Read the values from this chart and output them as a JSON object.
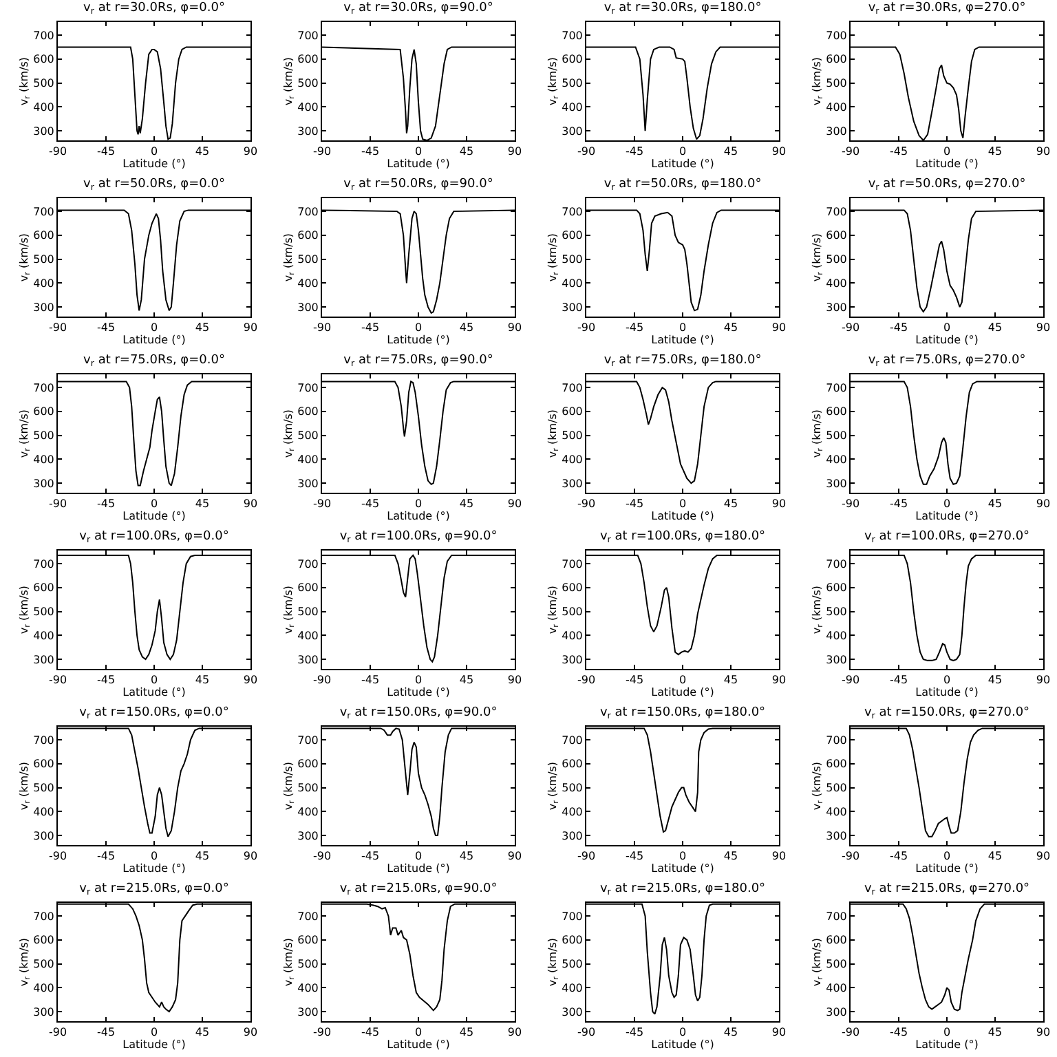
{
  "chart_data": [
    {
      "type": "line",
      "title": "v$_{r}$ at r=30.0Rs, φ=0.0°",
      "xlabel": "Latitude (°)",
      "ylabel": "v$_{r}$ (km/s)",
      "xlim": [
        -90,
        90
      ],
      "xticks": [
        -90,
        -45,
        0,
        45,
        90
      ],
      "ylim": [
        260,
        755
      ],
      "yticks": [
        300,
        400,
        500,
        600,
        700
      ],
      "series": [
        {
          "color": "#000000",
          "x": [
            -90,
            -22,
            -20,
            -18,
            -16,
            -15,
            -14,
            -13,
            -11,
            -8,
            -5,
            -2,
            0,
            3,
            6,
            9,
            11,
            13,
            15,
            17,
            20,
            23,
            26,
            30,
            90
          ],
          "values": [
            650,
            650,
            600,
            450,
            300,
            285,
            320,
            290,
            350,
            500,
            620,
            640,
            640,
            630,
            560,
            420,
            320,
            265,
            270,
            330,
            500,
            600,
            640,
            650,
            650
          ]
        }
      ]
    },
    {
      "type": "line",
      "title": "v$_{r}$ at r=30.0Rs, φ=90.0°",
      "xlabel": "Latitude (°)",
      "ylabel": "v$_{r}$ (km/s)",
      "xlim": [
        -90,
        90
      ],
      "xticks": [
        -90,
        -45,
        0,
        45,
        90
      ],
      "ylim": [
        260,
        755
      ],
      "yticks": [
        300,
        400,
        500,
        600,
        700
      ],
      "series": [
        {
          "color": "#000000",
          "x": [
            -90,
            -17,
            -14,
            -12,
            -11,
            -10,
            -8,
            -6,
            -4,
            -2,
            0,
            2,
            4,
            8,
            12,
            16,
            20,
            24,
            27,
            31,
            90
          ],
          "values": [
            650,
            640,
            520,
            380,
            290,
            320,
            480,
            600,
            640,
            580,
            420,
            300,
            265,
            260,
            270,
            320,
            450,
            580,
            640,
            650,
            650
          ]
        }
      ]
    },
    {
      "type": "line",
      "title": "v$_{r}$ at r=30.0Rs, φ=180.0°",
      "xlabel": "Latitude (°)",
      "ylabel": "v$_{r}$ (km/s)",
      "xlim": [
        -90,
        90
      ],
      "xticks": [
        -90,
        -45,
        0,
        45,
        90
      ],
      "ylim": [
        260,
        755
      ],
      "yticks": [
        300,
        400,
        500,
        600,
        700
      ],
      "series": [
        {
          "color": "#000000",
          "x": [
            -90,
            -44,
            -40,
            -37,
            -35,
            -33,
            -30,
            -27,
            -22,
            -12,
            -8,
            -6,
            0,
            2,
            4,
            7,
            10,
            13,
            16,
            19,
            23,
            27,
            31,
            35,
            90
          ],
          "values": [
            650,
            650,
            600,
            450,
            300,
            430,
            600,
            640,
            650,
            650,
            640,
            605,
            600,
            590,
            520,
            400,
            310,
            265,
            280,
            350,
            480,
            580,
            630,
            650,
            650
          ]
        }
      ]
    },
    {
      "type": "line",
      "title": "v$_{r}$ at r=30.0Rs, φ=270.0°",
      "xlabel": "Latitude (°)",
      "ylabel": "v$_{r}$ (km/s)",
      "xlim": [
        -90,
        90
      ],
      "xticks": [
        -90,
        -45,
        0,
        45,
        90
      ],
      "ylim": [
        260,
        755
      ],
      "yticks": [
        300,
        400,
        500,
        600,
        700
      ],
      "series": [
        {
          "color": "#000000",
          "x": [
            -90,
            -48,
            -44,
            -40,
            -36,
            -31,
            -26,
            -22,
            -18,
            -14,
            -10,
            -7,
            -5,
            -3,
            0,
            3,
            6,
            9,
            11,
            13,
            15,
            17,
            20,
            23,
            26,
            30,
            90
          ],
          "values": [
            650,
            650,
            620,
            540,
            440,
            340,
            280,
            260,
            285,
            380,
            480,
            560,
            575,
            530,
            500,
            495,
            480,
            450,
            390,
            300,
            270,
            360,
            480,
            590,
            640,
            650,
            650
          ]
        }
      ]
    },
    {
      "type": "line",
      "title": "v$_{r}$ at r=50.0Rs, φ=0.0°",
      "xlabel": "Latitude (°)",
      "ylabel": "v$_{r}$ (km/s)",
      "xlim": [
        -90,
        90
      ],
      "xticks": [
        -90,
        -45,
        0,
        45,
        90
      ],
      "ylim": [
        260,
        755
      ],
      "yticks": [
        300,
        400,
        500,
        600,
        700
      ],
      "series": [
        {
          "color": "#000000",
          "x": [
            -90,
            -28,
            -24,
            -21,
            -18,
            -16,
            -14,
            -12,
            -9,
            -5,
            -2,
            2,
            4,
            6,
            8,
            11,
            14,
            16,
            18,
            21,
            24,
            28,
            32,
            90
          ],
          "values": [
            705,
            705,
            690,
            620,
            480,
            350,
            285,
            330,
            500,
            600,
            650,
            690,
            670,
            580,
            450,
            330,
            285,
            300,
            400,
            560,
            660,
            700,
            705,
            705
          ]
        }
      ]
    },
    {
      "type": "line",
      "title": "v$_{r}$ at r=50.0Rs, φ=90.0°",
      "xlabel": "Latitude (°)",
      "ylabel": "v$_{r}$ (km/s)",
      "xlim": [
        -90,
        90
      ],
      "xticks": [
        -90,
        -45,
        0,
        45,
        90
      ],
      "ylim": [
        260,
        755
      ],
      "yticks": [
        300,
        400,
        500,
        600,
        700
      ],
      "series": [
        {
          "color": "#000000",
          "x": [
            -90,
            -20,
            -17,
            -14,
            -12,
            -11,
            -9,
            -6,
            -4,
            -2,
            0,
            2,
            4,
            6,
            9,
            12,
            14,
            17,
            20,
            23,
            26,
            29,
            33,
            90
          ],
          "values": [
            705,
            700,
            690,
            600,
            460,
            400,
            520,
            670,
            700,
            690,
            620,
            520,
            420,
            350,
            300,
            275,
            280,
            330,
            400,
            500,
            600,
            670,
            700,
            705
          ]
        }
      ]
    },
    {
      "type": "line",
      "title": "v$_{r}$ at r=50.0Rs, φ=180.0°",
      "xlabel": "Latitude (°)",
      "ylabel": "v$_{r}$ (km/s)",
      "xlim": [
        -90,
        90
      ],
      "xticks": [
        -90,
        -45,
        0,
        45,
        90
      ],
      "ylim": [
        260,
        755
      ],
      "yticks": [
        300,
        400,
        500,
        600,
        700
      ],
      "series": [
        {
          "color": "#000000",
          "x": [
            -90,
            -43,
            -40,
            -37,
            -35,
            -33,
            -31,
            -29,
            -26,
            -20,
            -14,
            -10,
            -7,
            -4,
            0,
            2,
            4,
            6,
            8,
            11,
            14,
            17,
            20,
            24,
            28,
            32,
            36,
            90
          ],
          "values": [
            705,
            705,
            690,
            620,
            520,
            450,
            540,
            650,
            680,
            690,
            695,
            680,
            600,
            570,
            560,
            540,
            480,
            400,
            320,
            285,
            290,
            350,
            450,
            560,
            650,
            695,
            705,
            705
          ]
        }
      ]
    },
    {
      "type": "line",
      "title": "v$_{r}$ at r=50.0Rs, φ=270.0°",
      "xlabel": "Latitude (°)",
      "ylabel": "v$_{r}$ (km/s)",
      "xlim": [
        -90,
        90
      ],
      "xticks": [
        -90,
        -45,
        0,
        45,
        90
      ],
      "ylim": [
        260,
        755
      ],
      "yticks": [
        300,
        400,
        500,
        600,
        700
      ],
      "series": [
        {
          "color": "#000000",
          "x": [
            -90,
            -40,
            -37,
            -34,
            -31,
            -28,
            -25,
            -22,
            -19,
            -15,
            -11,
            -7,
            -5,
            -3,
            0,
            3,
            6,
            9,
            12,
            14,
            17,
            20,
            23,
            27,
            90
          ],
          "values": [
            705,
            705,
            690,
            620,
            500,
            380,
            300,
            280,
            300,
            380,
            470,
            560,
            575,
            540,
            450,
            390,
            370,
            340,
            300,
            320,
            450,
            580,
            670,
            700,
            705
          ]
        }
      ]
    },
    {
      "type": "line",
      "title": "v$_{r}$ at r=75.0Rs, φ=0.0°",
      "xlabel": "Latitude (°)",
      "ylabel": "v$_{r}$ (km/s)",
      "xlim": [
        -90,
        90
      ],
      "xticks": [
        -90,
        -45,
        0,
        45,
        90
      ],
      "ylim": [
        260,
        755
      ],
      "yticks": [
        300,
        400,
        500,
        600,
        700
      ],
      "series": [
        {
          "color": "#000000",
          "x": [
            -90,
            -26,
            -23,
            -21,
            -19,
            -17,
            -15,
            -13,
            -10,
            -7,
            -4,
            -2,
            1,
            3,
            5,
            7,
            9,
            11,
            14,
            16,
            19,
            22,
            25,
            28,
            31,
            35,
            90
          ],
          "values": [
            725,
            725,
            700,
            620,
            480,
            350,
            290,
            290,
            350,
            400,
            450,
            520,
            600,
            650,
            660,
            600,
            480,
            370,
            300,
            290,
            340,
            450,
            580,
            670,
            710,
            725,
            725
          ]
        }
      ]
    },
    {
      "type": "line",
      "title": "v$_{r}$ at r=75.0Rs, φ=90.0°",
      "xlabel": "Latitude (°)",
      "ylabel": "v$_{r}$ (km/s)",
      "xlim": [
        -90,
        90
      ],
      "xticks": [
        -90,
        -45,
        0,
        45,
        90
      ],
      "ylim": [
        260,
        755
      ],
      "yticks": [
        300,
        400,
        500,
        600,
        700
      ],
      "series": [
        {
          "color": "#000000",
          "x": [
            -90,
            -22,
            -19,
            -16,
            -14,
            -13,
            -11,
            -9,
            -7,
            -5,
            -3,
            0,
            3,
            6,
            9,
            12,
            14,
            17,
            20,
            23,
            26,
            30,
            33,
            90
          ],
          "values": [
            725,
            725,
            700,
            620,
            530,
            495,
            560,
            680,
            725,
            720,
            680,
            580,
            460,
            370,
            310,
            295,
            300,
            370,
            480,
            600,
            690,
            720,
            725,
            725
          ]
        }
      ]
    },
    {
      "type": "line",
      "title": "v$_{r}$ at r=75.0Rs, φ=180.0°",
      "xlabel": "Latitude (°)",
      "ylabel": "v$_{r}$ (km/s)",
      "xlim": [
        -90,
        90
      ],
      "xticks": [
        -90,
        -45,
        0,
        45,
        90
      ],
      "ylim": [
        260,
        755
      ],
      "yticks": [
        300,
        400,
        500,
        600,
        700
      ],
      "series": [
        {
          "color": "#000000",
          "x": [
            -90,
            -43,
            -40,
            -37,
            -34,
            -32,
            -30,
            -27,
            -23,
            -19,
            -16,
            -13,
            -10,
            -6,
            -2,
            1,
            4,
            8,
            11,
            14,
            17,
            20,
            24,
            28,
            31,
            90
          ],
          "values": [
            725,
            725,
            700,
            650,
            590,
            545,
            570,
            620,
            670,
            700,
            690,
            640,
            560,
            470,
            380,
            350,
            320,
            300,
            310,
            380,
            500,
            620,
            700,
            720,
            725,
            725
          ]
        }
      ]
    },
    {
      "type": "line",
      "title": "v$_{r}$ at r=75.0Rs, φ=270.0°",
      "xlabel": "Latitude (°)",
      "ylabel": "v$_{r}$ (km/s)",
      "xlim": [
        -90,
        90
      ],
      "xticks": [
        -90,
        -45,
        0,
        45,
        90
      ],
      "ylim": [
        260,
        755
      ],
      "yticks": [
        300,
        400,
        500,
        600,
        700
      ],
      "series": [
        {
          "color": "#000000",
          "x": [
            -90,
            -40,
            -37,
            -34,
            -31,
            -28,
            -25,
            -22,
            -19,
            -16,
            -12,
            -8,
            -5,
            -3,
            -1,
            1,
            3,
            6,
            9,
            12,
            15,
            18,
            21,
            24,
            28,
            90
          ],
          "values": [
            725,
            725,
            700,
            620,
            500,
            400,
            330,
            295,
            295,
            330,
            360,
            410,
            470,
            490,
            470,
            380,
            320,
            295,
            300,
            330,
            450,
            580,
            680,
            715,
            725,
            725
          ]
        }
      ]
    },
    {
      "type": "line",
      "title": "v$_{r}$ at r=100.0Rs, φ=0.0°",
      "xlabel": "Latitude (°)",
      "ylabel": "v$_{r}$ (km/s)",
      "xlim": [
        -90,
        90
      ],
      "xticks": [
        -90,
        -45,
        0,
        45,
        90
      ],
      "ylim": [
        260,
        755
      ],
      "yticks": [
        300,
        400,
        500,
        600,
        700
      ],
      "series": [
        {
          "color": "#000000",
          "x": [
            -90,
            -24,
            -22,
            -20,
            -18,
            -16,
            -14,
            -11,
            -8,
            -5,
            -2,
            1,
            3,
            5,
            7,
            9,
            12,
            15,
            18,
            21,
            24,
            27,
            30,
            34,
            38,
            90
          ],
          "values": [
            735,
            735,
            700,
            620,
            500,
            400,
            340,
            310,
            300,
            320,
            360,
            420,
            500,
            550,
            470,
            370,
            320,
            300,
            320,
            380,
            500,
            620,
            700,
            730,
            735,
            735
          ]
        }
      ]
    },
    {
      "type": "line",
      "title": "v$_{r}$ at r=100.0Rs, φ=90.0°",
      "xlabel": "Latitude (°)",
      "ylabel": "v$_{r}$ (km/s)",
      "xlim": [
        -90,
        90
      ],
      "xticks": [
        -90,
        -45,
        0,
        45,
        90
      ],
      "ylim": [
        260,
        755
      ],
      "yticks": [
        300,
        400,
        500,
        600,
        700
      ],
      "series": [
        {
          "color": "#000000",
          "x": [
            -90,
            -22,
            -19,
            -16,
            -14,
            -12,
            -10,
            -8,
            -5,
            -3,
            -1,
            2,
            5,
            8,
            11,
            13,
            15,
            18,
            21,
            24,
            27,
            31,
            90
          ],
          "values": [
            735,
            735,
            700,
            630,
            580,
            560,
            640,
            720,
            735,
            720,
            660,
            550,
            440,
            350,
            300,
            290,
            310,
            400,
            520,
            640,
            710,
            735,
            735
          ]
        }
      ]
    },
    {
      "type": "line",
      "title": "v$_{r}$ at r=100.0Rs, φ=180.0°",
      "xlabel": "Latitude (°)",
      "ylabel": "v$_{r}$ (km/s)",
      "xlim": [
        -90,
        90
      ],
      "xticks": [
        -90,
        -45,
        0,
        45,
        90
      ],
      "ylim": [
        260,
        755
      ],
      "yticks": [
        300,
        400,
        500,
        600,
        700
      ],
      "series": [
        {
          "color": "#000000",
          "x": [
            -90,
            -42,
            -39,
            -36,
            -33,
            -30,
            -27,
            -24,
            -20,
            -17,
            -15,
            -13,
            -10,
            -7,
            -4,
            -1,
            2,
            5,
            8,
            11,
            14,
            17,
            20,
            24,
            28,
            32,
            90
          ],
          "values": [
            735,
            735,
            700,
            620,
            520,
            440,
            415,
            440,
            520,
            590,
            600,
            560,
            430,
            330,
            320,
            330,
            335,
            330,
            345,
            400,
            490,
            550,
            610,
            680,
            720,
            735,
            735
          ]
        }
      ]
    },
    {
      "type": "line",
      "title": "v$_{r}$ at r=100.0Rs, φ=270.0°",
      "xlabel": "Latitude (°)",
      "ylabel": "v$_{r}$ (km/s)",
      "xlim": [
        -90,
        90
      ],
      "xticks": [
        -90,
        -45,
        0,
        45,
        90
      ],
      "ylim": [
        260,
        755
      ],
      "yticks": [
        300,
        400,
        500,
        600,
        700
      ],
      "series": [
        {
          "color": "#000000",
          "x": [
            -90,
            -40,
            -37,
            -34,
            -31,
            -28,
            -25,
            -22,
            -18,
            -14,
            -10,
            -7,
            -4,
            -2,
            0,
            3,
            6,
            9,
            12,
            14,
            16,
            18,
            20,
            23,
            27,
            90
          ],
          "values": [
            735,
            735,
            700,
            620,
            500,
            400,
            330,
            300,
            295,
            295,
            300,
            330,
            365,
            360,
            330,
            300,
            295,
            300,
            320,
            400,
            520,
            620,
            690,
            720,
            735,
            735
          ]
        }
      ]
    },
    {
      "type": "line",
      "title": "v$_{r}$ at r=150.0Rs, φ=0.0°",
      "xlabel": "Latitude (°)",
      "ylabel": "v$_{r}$ (km/s)",
      "xlim": [
        -90,
        90
      ],
      "xticks": [
        -90,
        -45,
        0,
        45,
        90
      ],
      "ylim": [
        260,
        755
      ],
      "yticks": [
        300,
        400,
        500,
        600,
        700
      ],
      "series": [
        {
          "color": "#000000",
          "x": [
            -90,
            -24,
            -21,
            -18,
            -15,
            -12,
            -9,
            -6,
            -4,
            -2,
            1,
            3,
            5,
            7,
            9,
            11,
            13,
            16,
            19,
            22,
            25,
            28,
            31,
            34,
            38,
            42,
            90
          ],
          "values": [
            748,
            748,
            720,
            650,
            580,
            500,
            420,
            350,
            310,
            310,
            380,
            470,
            500,
            470,
            400,
            330,
            295,
            320,
            400,
            500,
            570,
            600,
            640,
            700,
            740,
            748,
            748
          ]
        }
      ]
    },
    {
      "type": "line",
      "title": "v$_{r}$ at r=150.0Rs, φ=90.0°",
      "xlabel": "Latitude (°)",
      "ylabel": "v$_{r}$ (km/s)",
      "xlim": [
        -90,
        90
      ],
      "xticks": [
        -90,
        -45,
        0,
        45,
        90
      ],
      "ylim": [
        260,
        755
      ],
      "yticks": [
        300,
        400,
        500,
        600,
        700
      ],
      "series": [
        {
          "color": "#000000",
          "x": [
            -90,
            -35,
            -32,
            -29,
            -26,
            -24,
            -21,
            -18,
            -15,
            -12,
            -10,
            -8,
            -6,
            -4,
            -2,
            0,
            3,
            6,
            9,
            12,
            14,
            16,
            18,
            20,
            22,
            25,
            28,
            31,
            90
          ],
          "values": [
            748,
            748,
            740,
            720,
            720,
            735,
            748,
            745,
            700,
            560,
            470,
            560,
            660,
            690,
            670,
            560,
            500,
            470,
            430,
            380,
            330,
            300,
            300,
            380,
            500,
            650,
            720,
            748,
            748
          ]
        }
      ]
    },
    {
      "type": "line",
      "title": "v$_{r}$ at r=150.0Rs, φ=180.0°",
      "xlabel": "Latitude (°)",
      "ylabel": "v$_{r}$ (km/s)",
      "xlim": [
        -90,
        90
      ],
      "xticks": [
        -90,
        -45,
        0,
        45,
        90
      ],
      "ylim": [
        260,
        755
      ],
      "yticks": [
        300,
        400,
        500,
        600,
        700
      ],
      "series": [
        {
          "color": "#000000",
          "x": [
            -90,
            -36,
            -33,
            -30,
            -27,
            -24,
            -21,
            -18,
            -16,
            -13,
            -10,
            -7,
            -4,
            -1,
            1,
            3,
            6,
            9,
            12,
            14,
            15,
            17,
            20,
            24,
            28,
            90
          ],
          "values": [
            748,
            748,
            720,
            650,
            560,
            470,
            380,
            315,
            320,
            370,
            420,
            450,
            480,
            500,
            500,
            470,
            440,
            420,
            400,
            480,
            650,
            700,
            730,
            745,
            748,
            748
          ]
        }
      ]
    },
    {
      "type": "line",
      "title": "v$_{r}$ at r=150.0Rs, φ=270.0°",
      "xlabel": "Latitude (°)",
      "ylabel": "v$_{r}$ (km/s)",
      "xlim": [
        -90,
        90
      ],
      "xticks": [
        -90,
        -45,
        0,
        45,
        90
      ],
      "ylim": [
        260,
        755
      ],
      "yticks": [
        300,
        400,
        500,
        600,
        700
      ],
      "series": [
        {
          "color": "#000000",
          "x": [
            -90,
            -38,
            -35,
            -32,
            -29,
            -26,
            -23,
            -20,
            -17,
            -14,
            -11,
            -8,
            -5,
            -2,
            0,
            2,
            4,
            7,
            10,
            13,
            16,
            19,
            22,
            25,
            29,
            33,
            90
          ],
          "values": [
            748,
            748,
            720,
            660,
            580,
            500,
            410,
            320,
            295,
            295,
            320,
            350,
            360,
            370,
            375,
            340,
            310,
            310,
            320,
            400,
            520,
            620,
            690,
            720,
            740,
            748,
            748
          ]
        }
      ]
    },
    {
      "type": "line",
      "title": "v$_{r}$ at r=215.0Rs, φ=0.0°",
      "xlabel": "Latitude (°)",
      "ylabel": "v$_{r}$ (km/s)",
      "xlim": [
        -90,
        90
      ],
      "xticks": [
        -90,
        -45,
        0,
        45,
        90
      ],
      "ylim": [
        260,
        755
      ],
      "yticks": [
        300,
        400,
        500,
        600,
        700
      ],
      "series": [
        {
          "color": "#000000",
          "x": [
            -90,
            -24,
            -20,
            -17,
            -14,
            -11,
            -9,
            -7,
            -5,
            -2,
            1,
            3,
            5,
            7,
            9,
            11,
            14,
            17,
            20,
            22,
            24,
            26,
            29,
            32,
            36,
            40,
            90
          ],
          "values": [
            750,
            750,
            730,
            700,
            660,
            600,
            520,
            420,
            380,
            360,
            340,
            330,
            320,
            340,
            320,
            310,
            300,
            320,
            350,
            420,
            600,
            680,
            700,
            720,
            745,
            750,
            750
          ]
        }
      ]
    },
    {
      "type": "line",
      "title": "v$_{r}$ at r=215.0Rs, φ=90.0°",
      "xlabel": "Latitude (°)",
      "ylabel": "v$_{r}$ (km/s)",
      "xlim": [
        -90,
        90
      ],
      "xticks": [
        -90,
        -45,
        0,
        45,
        90
      ],
      "ylim": [
        260,
        755
      ],
      "yticks": [
        300,
        400,
        500,
        600,
        700
      ],
      "series": [
        {
          "color": "#000000",
          "x": [
            -90,
            -48,
            -42,
            -38,
            -34,
            -31,
            -28,
            -26,
            -24,
            -21,
            -19,
            -16,
            -14,
            -11,
            -8,
            -5,
            -2,
            1,
            5,
            9,
            12,
            14,
            17,
            20,
            22,
            24,
            27,
            30,
            34,
            90
          ],
          "values": [
            750,
            750,
            745,
            740,
            730,
            735,
            700,
            620,
            650,
            650,
            620,
            640,
            610,
            600,
            540,
            450,
            380,
            360,
            345,
            330,
            315,
            305,
            320,
            350,
            430,
            560,
            680,
            740,
            750,
            750
          ]
        }
      ]
    },
    {
      "type": "line",
      "title": "v$_{r}$ at r=215.0Rs, φ=180.0°",
      "xlabel": "Latitude (°)",
      "ylabel": "v$_{r}$ (km/s)",
      "xlim": [
        -90,
        90
      ],
      "xticks": [
        -90,
        -45,
        0,
        45,
        90
      ],
      "ylim": [
        260,
        755
      ],
      "yticks": [
        300,
        400,
        500,
        600,
        700
      ],
      "series": [
        {
          "color": "#000000",
          "x": [
            -90,
            -38,
            -35,
            -33,
            -30,
            -28,
            -26,
            -24,
            -21,
            -19,
            -17,
            -15,
            -13,
            -10,
            -8,
            -6,
            -4,
            -2,
            1,
            4,
            7,
            10,
            12,
            14,
            16,
            18,
            20,
            22,
            25,
            28,
            90
          ],
          "values": [
            750,
            750,
            700,
            550,
            380,
            300,
            290,
            320,
            450,
            580,
            610,
            560,
            450,
            380,
            360,
            370,
            450,
            580,
            610,
            600,
            560,
            450,
            370,
            345,
            360,
            450,
            600,
            700,
            745,
            750,
            750
          ]
        }
      ]
    },
    {
      "type": "line",
      "title": "v$_{r}$ at r=215.0Rs, φ=270.0°",
      "xlabel": "Latitude (°)",
      "ylabel": "v$_{r}$ (km/s)",
      "xlim": [
        -90,
        90
      ],
      "xticks": [
        -90,
        -45,
        0,
        45,
        90
      ],
      "ylim": [
        260,
        755
      ],
      "yticks": [
        300,
        400,
        500,
        600,
        700
      ],
      "series": [
        {
          "color": "#000000",
          "x": [
            -90,
            -41,
            -38,
            -35,
            -32,
            -29,
            -26,
            -23,
            -20,
            -17,
            -14,
            -11,
            -8,
            -5,
            -2,
            0,
            2,
            4,
            7,
            10,
            12,
            14,
            17,
            20,
            24,
            27,
            31,
            35,
            90
          ],
          "values": [
            750,
            750,
            730,
            690,
            620,
            540,
            460,
            400,
            350,
            320,
            310,
            320,
            330,
            340,
            370,
            400,
            390,
            340,
            310,
            305,
            310,
            380,
            450,
            520,
            600,
            680,
            730,
            750,
            750
          ]
        }
      ]
    }
  ]
}
